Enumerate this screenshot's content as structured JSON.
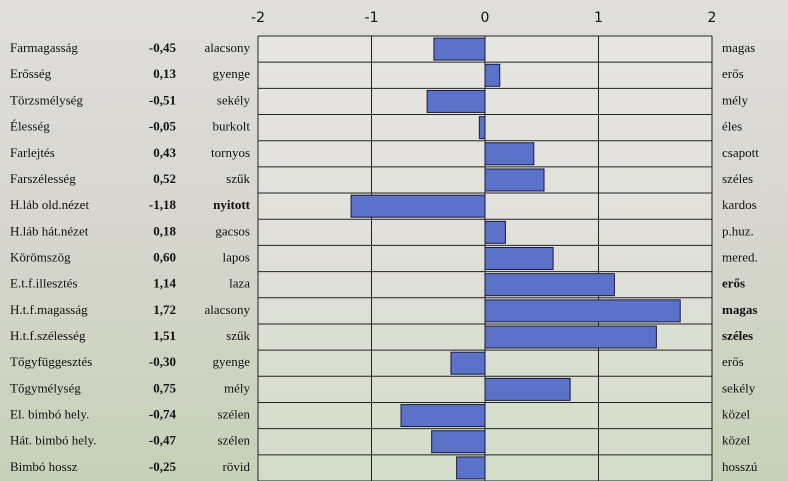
{
  "chart_data": {
    "type": "bar",
    "orientation": "horizontal",
    "categories": [
      "Farmagasság",
      "Erősség",
      "Törzsmélység",
      "Élesség",
      "Farlejtés",
      "Farszélesség",
      "H.láb old.nézet",
      "H.láb hát.nézet",
      "Körömszög",
      "E.t.f.illesztés",
      "H.t.f.magasság",
      "H.t.f.szélesség",
      "Tőgyfüggesztés",
      "Tőgymélység",
      "El. bimbó hely.",
      "Hát. bimbó hely.",
      "Bimbó hossz"
    ],
    "values": [
      -0.45,
      0.13,
      -0.51,
      -0.05,
      0.43,
      0.52,
      -1.18,
      0.18,
      0.6,
      1.14,
      1.72,
      1.51,
      -0.3,
      0.75,
      -0.74,
      -0.47,
      -0.25
    ],
    "value_labels": [
      "-0,45",
      "0,13",
      "-0,51",
      "-0,05",
      "0,43",
      "0,52",
      "-1,18",
      "0,18",
      "0,60",
      "1,14",
      "1,72",
      "1,51",
      "-0,30",
      "0,75",
      "-0,74",
      "-0,47",
      "-0,25"
    ],
    "left_labels": [
      "alacsony",
      "gyenge",
      "sekély",
      "burkolt",
      "tornyos",
      "szűk",
      "nyitott",
      "gacsos",
      "lapos",
      "laza",
      "alacsony",
      "szűk",
      "gyenge",
      "mély",
      "szélen",
      "szélen",
      "rövid"
    ],
    "right_labels": [
      "magas",
      "erős",
      "mély",
      "éles",
      "csapott",
      "széles",
      "kardos",
      "p.huz.",
      "mered.",
      "erős",
      "magas",
      "széles",
      "erős",
      "sekély",
      "közel",
      "közel",
      "hosszú"
    ],
    "left_bold": [
      false,
      false,
      false,
      false,
      false,
      false,
      true,
      false,
      false,
      false,
      false,
      false,
      false,
      false,
      false,
      false,
      false
    ],
    "right_bold": [
      false,
      false,
      false,
      false,
      false,
      false,
      false,
      false,
      false,
      true,
      true,
      true,
      false,
      false,
      false,
      false,
      false
    ],
    "color": "#5b72c8",
    "xlim": [
      -2,
      2
    ],
    "xticks": [
      -2,
      -1,
      0,
      1,
      2
    ],
    "grid": true
  }
}
